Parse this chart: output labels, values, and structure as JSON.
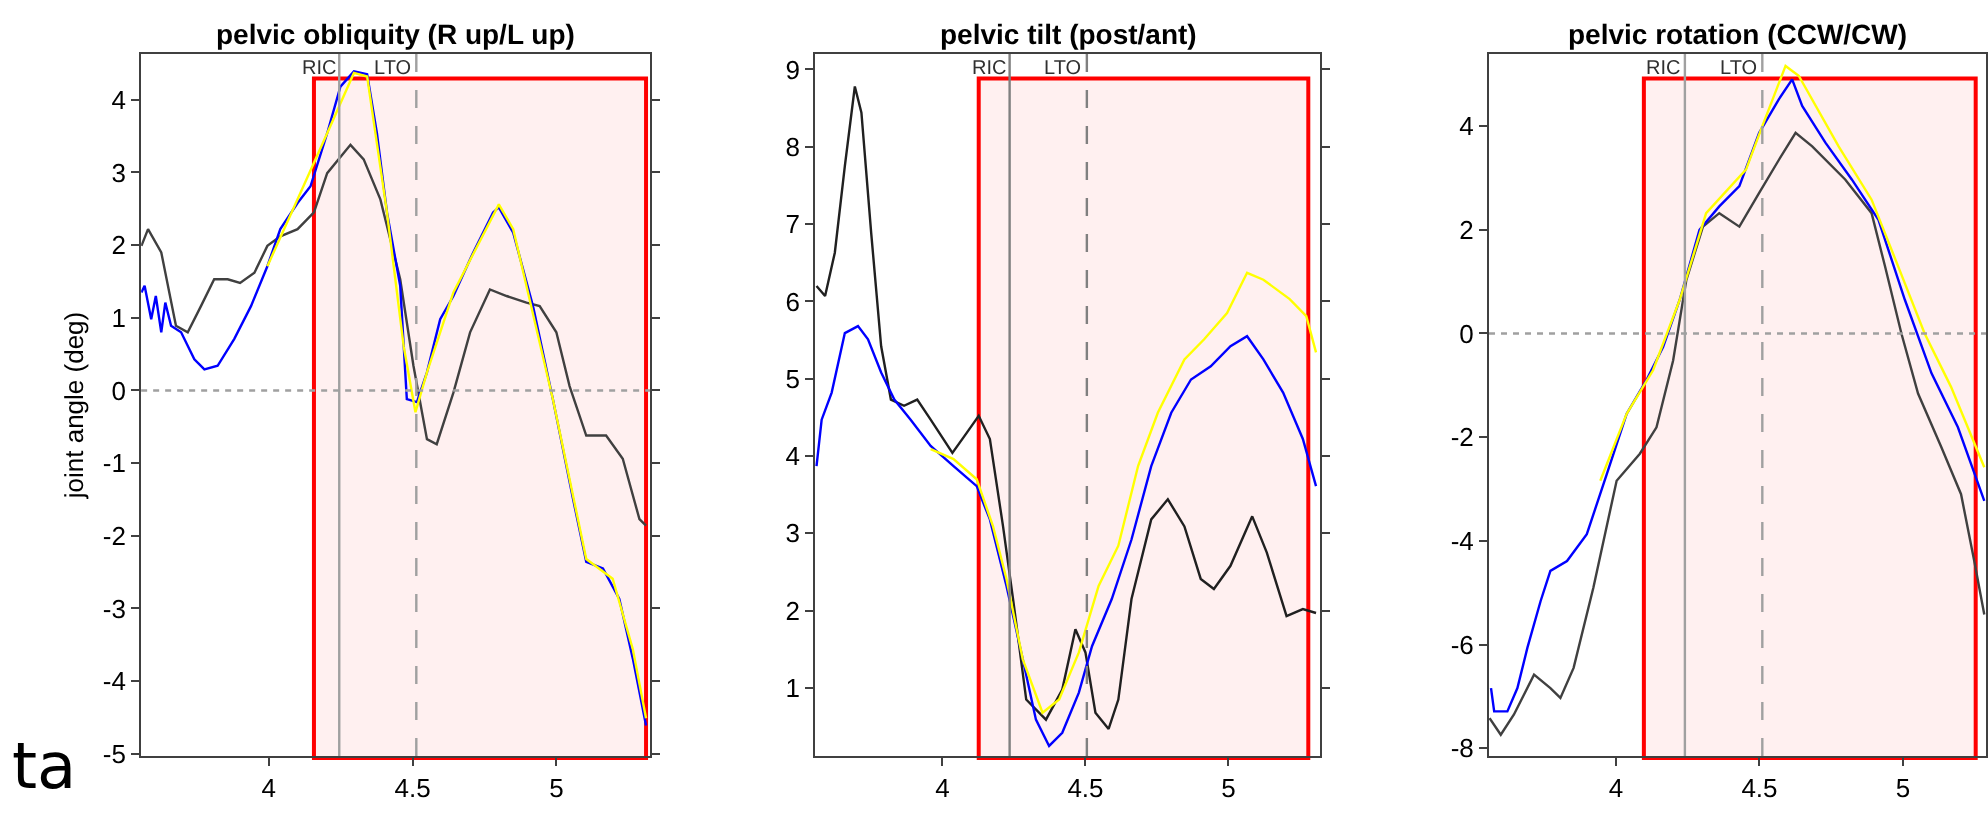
{
  "chart_data": [
    {
      "type": "line",
      "title": "pelvic obliquity (R up/L up)",
      "ylabel": "joint angle (deg)",
      "xlim": [
        3.556,
        5.326
      ],
      "ylim": [
        -5.03,
        4.63
      ],
      "xticks": [
        4,
        4.5,
        5
      ],
      "yticks": [
        -5,
        -4,
        -3,
        -2,
        -1,
        0,
        1,
        2,
        3,
        4
      ],
      "grid": false,
      "series": [
        {
          "color": "#404040",
          "x": [
            3.557,
            3.58,
            3.626,
            3.677,
            3.718,
            3.764,
            3.81,
            3.857,
            3.9,
            3.95,
            3.995,
            4.04,
            4.1,
            4.157,
            4.203,
            4.284,
            4.33,
            4.388,
            4.457,
            4.503,
            4.55,
            4.584,
            4.642,
            4.7,
            4.769,
            4.827,
            4.896,
            4.942,
            5.0,
            5.046,
            5.104,
            5.173,
            5.231,
            5.289,
            5.312
          ],
          "values": [
            1.99,
            2.22,
            1.9,
            0.89,
            0.8,
            1.16,
            1.53,
            1.53,
            1.48,
            1.62,
            1.99,
            2.12,
            2.22,
            2.45,
            2.99,
            3.38,
            3.18,
            2.63,
            1.53,
            0.34,
            -0.67,
            -0.74,
            -0.03,
            0.8,
            1.39,
            1.3,
            1.21,
            1.16,
            0.8,
            0.06,
            -0.62,
            -0.62,
            -0.94,
            -1.77,
            -1.86
          ]
        },
        {
          "color": "#0000ff",
          "x": [
            3.557,
            3.568,
            3.591,
            3.607,
            3.626,
            3.64,
            3.66,
            3.695,
            3.741,
            3.776,
            3.822,
            3.88,
            3.938,
            3.995,
            4.04,
            4.1,
            4.145,
            4.203,
            4.249,
            4.296,
            4.342,
            4.376,
            4.411,
            4.457,
            4.48,
            4.515,
            4.55,
            4.596,
            4.642,
            4.711,
            4.78,
            4.8,
            4.85,
            4.919,
            4.988,
            5.058,
            5.104,
            5.162,
            5.219,
            5.266,
            5.312
          ],
          "values": [
            1.35,
            1.44,
            0.98,
            1.3,
            0.8,
            1.21,
            0.89,
            0.8,
            0.43,
            0.29,
            0.34,
            0.71,
            1.16,
            1.71,
            2.22,
            2.58,
            2.81,
            3.54,
            4.18,
            4.39,
            4.35,
            3.54,
            2.45,
            1.44,
            -0.12,
            -0.16,
            0.25,
            0.98,
            1.3,
            1.9,
            2.45,
            2.52,
            2.17,
            1.16,
            -0.12,
            -1.49,
            -2.36,
            -2.45,
            -2.87,
            -3.69,
            -4.61
          ]
        },
        {
          "color": "#ffff00",
          "x": [
            3.995,
            4.1,
            4.203,
            4.296,
            4.342,
            4.411,
            4.469,
            4.51,
            4.55,
            4.642,
            4.8,
            4.85,
            4.988,
            5.104,
            5.196,
            5.266,
            5.312
          ],
          "values": [
            1.71,
            2.63,
            3.54,
            4.37,
            4.32,
            2.45,
            0.61,
            -0.3,
            0.25,
            1.35,
            2.56,
            2.22,
            -0.12,
            -2.32,
            -2.59,
            -3.56,
            -4.51
          ]
        }
      ],
      "ref_lines": [
        {
          "axis": "x",
          "value": 4.245,
          "label": "RIC",
          "color": "#a0a0a0",
          "line_style": "solid"
        },
        {
          "axis": "x",
          "value": 4.513,
          "label": "LTO",
          "color": "#a0a0a0",
          "line_style": "dashed"
        },
        {
          "axis": "y",
          "value": 0,
          "color": "#a0a0a0",
          "line_style": "dotted"
        }
      ],
      "bands": [
        {
          "axis": "x",
          "from": 4.157,
          "to": 5.312,
          "color": "#ff0000"
        }
      ],
      "annotations": [
        "ta"
      ]
    },
    {
      "type": "line",
      "title": "pelvic tilt (post/ant)",
      "xlim": [
        3.555,
        5.32
      ],
      "ylim": [
        0.12,
        9.2
      ],
      "xticks": [
        4,
        4.5,
        5
      ],
      "yticks": [
        1,
        2,
        3,
        4,
        5,
        6,
        7,
        8,
        9
      ],
      "grid": false,
      "series": [
        {
          "color": "#202020",
          "x": [
            3.56,
            3.59,
            3.624,
            3.659,
            3.694,
            3.717,
            3.751,
            3.786,
            3.82,
            3.866,
            3.912,
            3.959,
            4.035,
            4.085,
            4.127,
            4.166,
            4.212,
            4.247,
            4.293,
            4.362,
            4.419,
            4.465,
            4.5,
            4.535,
            4.581,
            4.615,
            4.661,
            4.73,
            4.788,
            4.846,
            4.903,
            4.949,
            5.007,
            5.083,
            5.134,
            5.203,
            5.26,
            5.306
          ],
          "values": [
            6.2,
            6.07,
            6.63,
            7.75,
            8.78,
            8.44,
            6.89,
            5.42,
            4.73,
            4.65,
            4.73,
            4.47,
            4.04,
            4.3,
            4.52,
            4.22,
            3.09,
            2.15,
            0.85,
            0.59,
            0.98,
            1.76,
            1.46,
            0.68,
            0.47,
            0.85,
            2.15,
            3.18,
            3.44,
            3.09,
            2.41,
            2.28,
            2.58,
            3.22,
            2.75,
            1.93,
            2.02,
            1.97
          ]
        },
        {
          "color": "#0000ff",
          "x": [
            3.56,
            3.578,
            3.613,
            3.659,
            3.705,
            3.74,
            3.786,
            3.832,
            3.889,
            3.959,
            4.039,
            4.12,
            4.166,
            4.224,
            4.281,
            4.327,
            4.373,
            4.419,
            4.477,
            4.523,
            4.592,
            4.661,
            4.73,
            4.8,
            4.869,
            4.938,
            5.007,
            5.065,
            5.122,
            5.191,
            5.26,
            5.306
          ],
          "values": [
            3.87,
            4.47,
            4.82,
            5.59,
            5.68,
            5.51,
            5.08,
            4.73,
            4.47,
            4.13,
            3.87,
            3.61,
            3.18,
            2.32,
            1.37,
            0.59,
            0.25,
            0.42,
            0.94,
            1.54,
            2.15,
            2.92,
            3.87,
            4.56,
            4.99,
            5.16,
            5.42,
            5.55,
            5.25,
            4.82,
            4.22,
            3.61
          ]
        },
        {
          "color": "#ffff00",
          "x": [
            3.959,
            4.039,
            4.12,
            4.177,
            4.224,
            4.281,
            4.35,
            4.408,
            4.477,
            4.546,
            4.615,
            4.684,
            4.753,
            4.846,
            4.915,
            4.995,
            5.065,
            5.122,
            5.214,
            5.272,
            5.306
          ],
          "values": [
            4.09,
            3.96,
            3.7,
            3.09,
            2.41,
            1.37,
            0.68,
            0.85,
            1.46,
            2.32,
            2.84,
            3.87,
            4.56,
            5.25,
            5.51,
            5.85,
            6.37,
            6.28,
            6.03,
            5.81,
            5.34
          ]
        }
      ],
      "ref_lines": [
        {
          "axis": "x",
          "value": 4.235,
          "label": "RIC",
          "color": "#808080",
          "line_style": "solid"
        },
        {
          "axis": "x",
          "value": 4.505,
          "label": "LTO",
          "color": "#808080",
          "line_style": "dashed"
        }
      ],
      "bands": [
        {
          "axis": "x",
          "from": 4.127,
          "to": 5.279,
          "color": "#ff0000"
        }
      ]
    },
    {
      "type": "line",
      "title": "pelvic rotation (CCW/CW)",
      "xlim": [
        3.557,
        5.29
      ],
      "ylim": [
        -8.15,
        5.39
      ],
      "xticks": [
        4,
        4.5,
        5
      ],
      "yticks": [
        -8,
        -6,
        -4,
        -2,
        0,
        2,
        4
      ],
      "grid": false,
      "series": [
        {
          "color": "#404040",
          "x": [
            3.559,
            3.598,
            3.644,
            3.714,
            3.771,
            3.806,
            3.852,
            3.921,
            4.002,
            4.083,
            4.141,
            4.199,
            4.245,
            4.303,
            4.36,
            4.43,
            4.499,
            4.568,
            4.626,
            4.684,
            4.799,
            4.891,
            4.938,
            4.995,
            5.053,
            5.134,
            5.203,
            5.249,
            5.284
          ],
          "values": [
            -7.42,
            -7.74,
            -7.35,
            -6.58,
            -6.84,
            -7.03,
            -6.45,
            -4.9,
            -2.84,
            -2.32,
            -1.81,
            -0.52,
            1.03,
            2.06,
            2.32,
            2.06,
            2.71,
            3.35,
            3.87,
            3.61,
            2.97,
            2.32,
            1.29,
            0,
            -1.16,
            -2.19,
            -3.1,
            -4.39,
            -5.42
          ]
        },
        {
          "color": "#0000ff",
          "x": [
            3.564,
            3.575,
            3.621,
            3.656,
            3.691,
            3.737,
            3.771,
            3.829,
            3.898,
            3.968,
            4.037,
            4.106,
            4.164,
            4.222,
            4.291,
            4.36,
            4.43,
            4.499,
            4.568,
            4.614,
            4.649,
            4.73,
            4.822,
            4.915,
            5.007,
            5.1,
            5.192,
            5.284
          ],
          "values": [
            -6.84,
            -7.29,
            -7.29,
            -6.84,
            -6.06,
            -5.16,
            -4.58,
            -4.39,
            -3.87,
            -2.71,
            -1.55,
            -0.9,
            -0.26,
            0.65,
            2.0,
            2.45,
            2.84,
            3.87,
            4.52,
            4.9,
            4.39,
            3.68,
            2.97,
            2.19,
            0.65,
            -0.77,
            -1.81,
            -3.23
          ]
        },
        {
          "color": "#ffff00",
          "x": [
            3.945,
            4.037,
            4.129,
            4.222,
            4.314,
            4.453,
            4.51,
            4.591,
            4.637,
            4.776,
            4.891,
            4.984,
            5.076,
            5.168,
            5.284
          ],
          "values": [
            -2.84,
            -1.55,
            -0.71,
            0.65,
            2.32,
            3.16,
            4.0,
            5.16,
            4.97,
            3.61,
            2.58,
            1.29,
            0,
            -1.03,
            -2.58
          ]
        }
      ],
      "ref_lines": [
        {
          "axis": "x",
          "value": 4.24,
          "label": "RIC",
          "color": "#a0a0a0",
          "line_style": "solid"
        },
        {
          "axis": "x",
          "value": 4.51,
          "label": "LTO",
          "color": "#a0a0a0",
          "line_style": "dashed"
        },
        {
          "axis": "y",
          "value": 0,
          "color": "#a0a0a0",
          "line_style": "dotted"
        }
      ],
      "bands": [
        {
          "axis": "x",
          "from": 4.097,
          "to": 5.254,
          "color": "#ff0000"
        }
      ]
    }
  ]
}
